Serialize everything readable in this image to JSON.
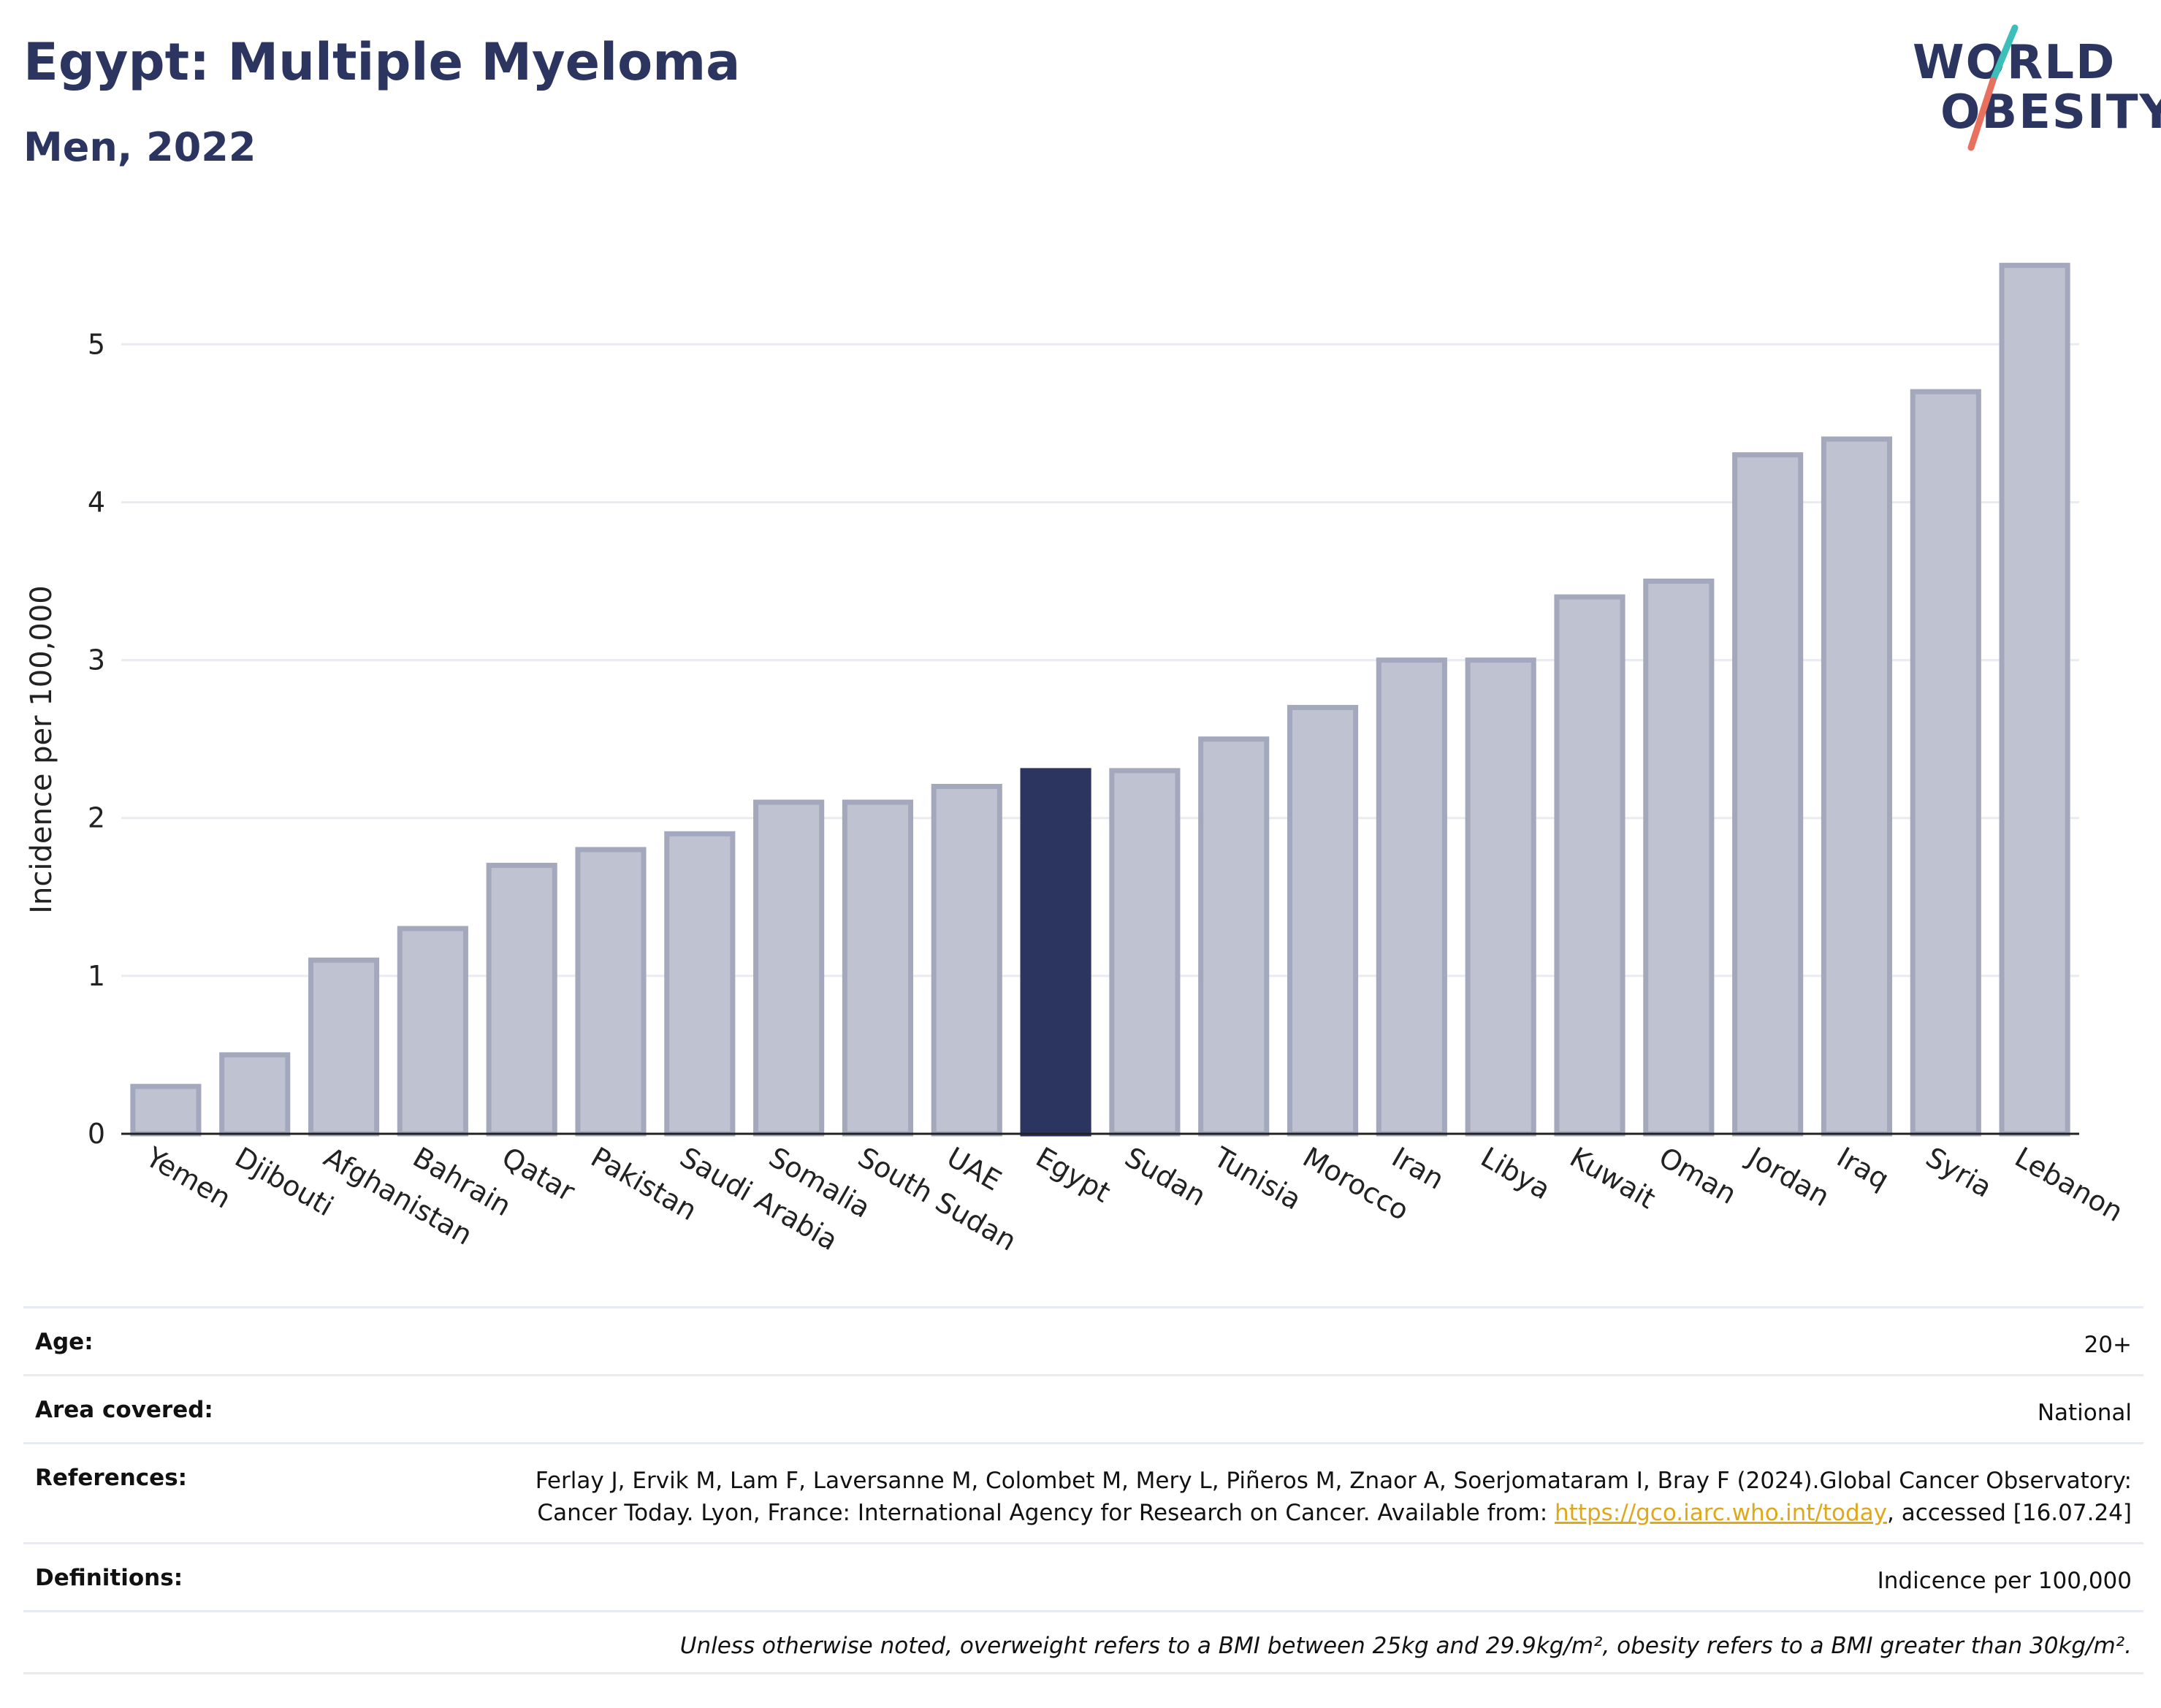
{
  "header": {
    "title": "Egypt: Multiple Myeloma",
    "subtitle": "Men, 2022"
  },
  "logo": {
    "line1": "WORLD",
    "line2": "OBESITY",
    "colors": {
      "text": "#2b3560",
      "teal": "#3bbfb8",
      "coral": "#e8705e"
    }
  },
  "chart_data": {
    "type": "bar",
    "ylabel": "Incidence per 100,000",
    "xlabel": "",
    "ylim": [
      0,
      5.7
    ],
    "yticks": [
      0,
      1,
      2,
      3,
      4,
      5
    ],
    "grid": true,
    "highlight": "Egypt",
    "colors": {
      "bar": "#bfc2d0",
      "bar_border": "#a4a8bd",
      "highlight": "#2b3560"
    },
    "categories": [
      "Yemen",
      "Djibouti",
      "Afghanistan",
      "Bahrain",
      "Qatar",
      "Pakistan",
      "Saudi Arabia",
      "Somalia",
      "South Sudan",
      "UAE",
      "Egypt",
      "Sudan",
      "Tunisia",
      "Morocco",
      "Iran",
      "Libya",
      "Kuwait",
      "Oman",
      "Jordan",
      "Iraq",
      "Syria",
      "Lebanon"
    ],
    "values": [
      0.3,
      0.5,
      1.1,
      1.3,
      1.7,
      1.8,
      1.9,
      2.1,
      2.1,
      2.2,
      2.3,
      2.3,
      2.5,
      2.7,
      3.0,
      3.0,
      3.4,
      3.5,
      4.3,
      4.4,
      4.7,
      5.5
    ]
  },
  "info": {
    "age": {
      "label": "Age:",
      "value": "20+"
    },
    "area": {
      "label": "Area covered:",
      "value": "National"
    },
    "references": {
      "label": "References:",
      "text_before": "Ferlay J, Ervik M, Lam F, Laversanne M, Colombet M, Mery L, Piñeros M, Znaor A, Soerjomataram I, Bray F (2024).Global Cancer Observatory: Cancer Today. Lyon, France: International Agency for Research on Cancer. Available from: ",
      "link": "https://gco.iarc.who.int/today",
      "text_after": ", accessed [16.07.24]"
    },
    "definitions": {
      "label": "Definitions:",
      "value": "Indicence per 100,000"
    },
    "note": "Unless otherwise noted, overweight refers to a BMI between 25kg and 29.9kg/m², obesity refers to a BMI greater than 30kg/m²."
  }
}
